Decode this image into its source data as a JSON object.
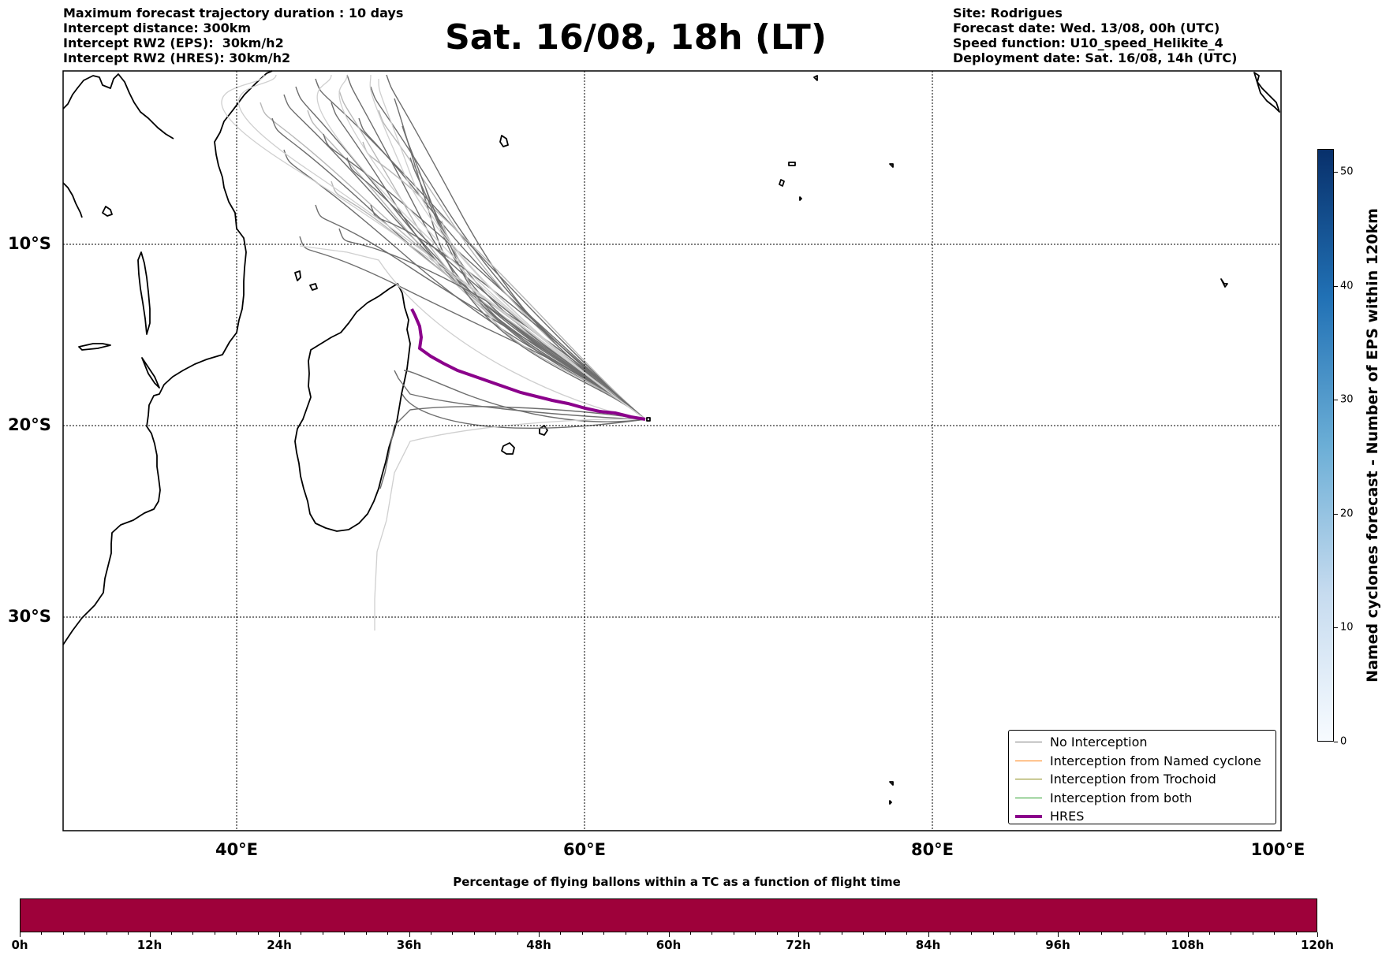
{
  "header": {
    "left_lines": [
      "Maximum forecast trajectory duration : 10 days",
      "Intercept distance: 300km",
      "Intercept RW2 (EPS):  30km/h2",
      "Intercept RW2 (HRES): 30km/h2"
    ],
    "title": "Sat. 16/08, 18h (LT)",
    "right_lines": [
      "Site: Rodrigues",
      "Forecast date: Wed. 13/08, 00h (UTC)",
      "Speed function: U10_speed_Helikite_4",
      "Deployment date: Sat. 16/08, 14h (UTC)"
    ]
  },
  "map": {
    "lon_range": [
      30,
      100
    ],
    "lat_range": [
      -42,
      0
    ],
    "lat_ticks": [
      "10°S",
      "20°S",
      "30°S"
    ],
    "lon_ticks": [
      "40°E",
      "60°E",
      "80°E",
      "100°E"
    ],
    "launch_site": "Rodrigues"
  },
  "legend": [
    {
      "label": "No Interception",
      "color": "#808080"
    },
    {
      "label": "Interception from Named cyclone",
      "color": "#ff7f0e"
    },
    {
      "label": "Interception from Trochoid",
      "color": "#8c8c1a"
    },
    {
      "label": "Interception from both",
      "color": "#2ca02c"
    },
    {
      "label": "HRES",
      "color": "#8b008b"
    }
  ],
  "colorbar_right": {
    "label": "Named cyclones forecast - Number of EPS within 120km",
    "ticks": [
      "0",
      "10",
      "20",
      "30",
      "40",
      "50"
    ],
    "range": [
      0,
      52
    ],
    "cmap": [
      "#f7fbff",
      "#08306b"
    ]
  },
  "colorbar_bottom": {
    "title": "Percentage of flying ballons within a TC as a function of flight time",
    "ticks": [
      "0h",
      "12h",
      "24h",
      "36h",
      "48h",
      "60h",
      "72h",
      "84h",
      "96h",
      "108h",
      "120h"
    ],
    "fill_color": "#9e013a"
  }
}
